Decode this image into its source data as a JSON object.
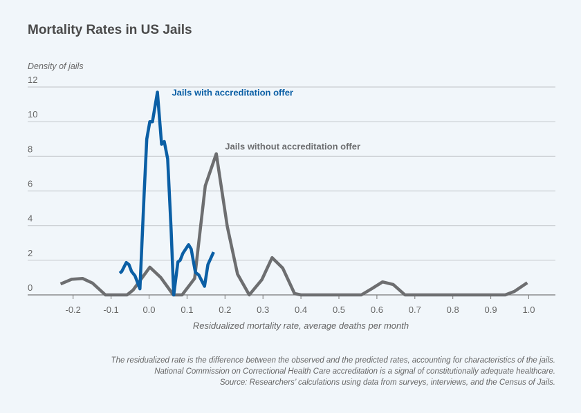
{
  "chart_data": {
    "type": "line",
    "title": "Mortality Rates in US Jails",
    "xlabel": "Residualized mortality rate, average deaths per month",
    "ylabel": "Density of jails",
    "xlim": [
      -0.3,
      1.07
    ],
    "ylim": [
      0,
      12
    ],
    "x_ticks": [
      -0.2,
      -0.1,
      0.0,
      0.1,
      0.2,
      0.3,
      0.4,
      0.5,
      0.6,
      0.7,
      0.8,
      0.9,
      1.0
    ],
    "x_tick_labels": [
      "-0.2",
      "-0.1",
      "0.0",
      "0.1",
      "0.2",
      "0.3",
      "0.4",
      "0.5",
      "0.6",
      "0.7",
      "0.8",
      "0.9",
      "1.0"
    ],
    "y_ticks": [
      0,
      2,
      4,
      6,
      8,
      10,
      12
    ],
    "y_tick_labels": [
      "0",
      "2",
      "4",
      "6",
      "8",
      "10",
      "12"
    ],
    "grid": true,
    "legend": "inline-labels",
    "series": [
      {
        "name": "Jails with accreditation offer",
        "color": "#0b5fa5",
        "x": [
          -0.077,
          -0.072,
          -0.06,
          -0.053,
          -0.046,
          -0.037,
          -0.024,
          -0.013,
          -0.006,
          0.002,
          0.009,
          0.022,
          0.033,
          0.04,
          0.049,
          0.058,
          0.065,
          0.076,
          0.082,
          0.089,
          0.104,
          0.111,
          0.122,
          0.131,
          0.146,
          0.155,
          0.17
        ],
        "y": [
          1.25,
          1.35,
          1.87,
          1.75,
          1.35,
          1.1,
          0.35,
          5.85,
          9.0,
          10.0,
          10.0,
          11.7,
          8.7,
          8.85,
          7.85,
          3.85,
          0.0,
          1.9,
          2.0,
          2.4,
          2.9,
          2.65,
          1.3,
          1.15,
          0.5,
          1.75,
          2.47
        ],
        "label_at": [
          0.06,
          11.5
        ]
      },
      {
        "name": "Jails without accreditation offer",
        "color": "#6d6e70",
        "x": [
          -0.233,
          -0.204,
          -0.175,
          -0.149,
          -0.115,
          -0.058,
          -0.042,
          0.002,
          0.031,
          0.064,
          0.087,
          0.12,
          0.148,
          0.177,
          0.206,
          0.233,
          0.264,
          0.297,
          0.324,
          0.352,
          0.383,
          0.4,
          0.559,
          0.586,
          0.615,
          0.643,
          0.674,
          0.938,
          0.962,
          0.996
        ],
        "y": [
          0.63,
          0.9,
          0.95,
          0.68,
          0.0,
          0.0,
          0.28,
          1.6,
          1.0,
          0.0,
          0.0,
          0.95,
          6.3,
          8.15,
          3.95,
          1.2,
          0.0,
          0.88,
          2.15,
          1.55,
          0.08,
          0.0,
          0.0,
          0.35,
          0.75,
          0.6,
          0.0,
          0.0,
          0.2,
          0.7
        ],
        "label_at": [
          0.2,
          8.4
        ]
      }
    ],
    "notes": [
      "The residualized rate is the difference between the observed and the predicted rates, accounting for characteristics of the jails.",
      "National Commission on Correctional Health Care accreditation is a signal of constitutionally adequate healthcare.",
      "Source: Researchers’ calculations using data from surveys, interviews, and the Census of Jails."
    ]
  },
  "colors": {
    "background": "#f1f6fa",
    "gridline": "#c9cdd1",
    "axis": "#777777",
    "title": "#4a4a4a"
  }
}
